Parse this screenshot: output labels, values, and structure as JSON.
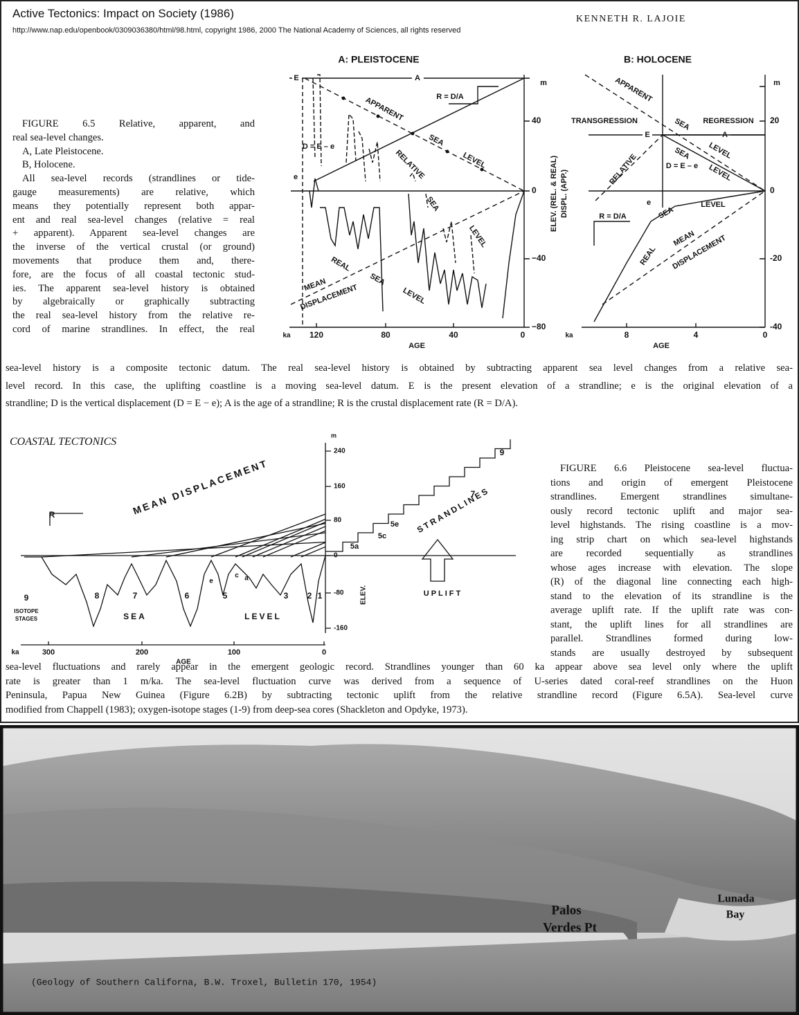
{
  "header": {
    "title": "Active Tectonics: Impact on Society (1986)",
    "url": "http://www.nap.edu/openbook/0309036380/html/98.html, copyright 1986, 2000 The National Academy of Sciences, all rights reserved",
    "author": "KENNETH R. LAJOIE"
  },
  "figure_6_5": {
    "panel_a": {
      "title": "A: PLEISTOCENE",
      "labels": [
        "E",
        "A",
        "R = D/A",
        "m",
        "APPARENT",
        "SEA",
        "LEVEL",
        "D = E – e",
        "e",
        "RELATIVE",
        "SEA",
        "LEVEL",
        "REAL",
        "SEA",
        "LEVEL",
        "MEAN",
        "DISPLACEMENT",
        "ELEV. (REL. & REAL)",
        "DISPL. (APP.)"
      ],
      "y_ticks": [
        "40",
        "0",
        "−40",
        "−80"
      ],
      "x_unit": "ka",
      "x_ticks": [
        "120",
        "80",
        "40",
        "0"
      ],
      "x_label": "AGE"
    },
    "panel_b": {
      "title": "B: HOLOCENE",
      "labels": [
        "APPARENT",
        "SEA",
        "LEVEL",
        "TRANSGRESSION",
        "REGRESSION",
        "E",
        "A",
        "RELATIVE",
        "SEA",
        "LEVEL",
        "D = E – e",
        "R = D/A",
        "e",
        "SEA",
        "LEVEL",
        "REAL",
        "MEAN",
        "DISPLACEMENT",
        "m"
      ],
      "y_ticks": [
        "20",
        "0",
        "-20",
        "-40"
      ],
      "x_unit": "ka",
      "x_ticks": [
        "8",
        "4",
        "0"
      ],
      "x_label": "AGE"
    },
    "caption_column": [
      "FIGURE 6.5  Relative, apparent, and",
      "real sea-level changes.",
      "A, Late Pleistocene.",
      "B, Holocene.",
      "All sea-level records (strandlines or tide-",
      "gauge measurements) are relative, which",
      "means they potentially represent both appar-",
      "ent and real sea-level changes (relative = real",
      "+ apparent). Apparent sea-level changes are",
      "the inverse of the vertical crustal (or ground)",
      "movements that produce them and, there-",
      "fore, are the focus of all coastal tectonic stud-",
      "ies. The apparent sea-level history is obtained",
      "by algebraically or graphically subtracting",
      "the real sea-level history from the relative re-",
      "cord of marine strandlines. In effect, the real"
    ],
    "caption_full": [
      "sea-level history is a composite tectonic datum. The real sea-level history is obtained by subtracting apparent sea level changes from a relative sea-",
      "level record. In this case, the uplifting coastline is a moving sea-level datum. E is the present elevation of a strandline; e is the original elevation of a",
      "strandline; D is the vertical displacement (D = E − e); A is the age of a strandline; R is the crustal displacement rate (R = D/A)."
    ]
  },
  "section_heading": "COASTAL TECTONICS",
  "figure_6_6": {
    "diagram": {
      "labels": [
        "MEAN DISPLACEMENT",
        "R",
        "9",
        "ISOTOPE",
        "STAGES",
        "8",
        "7",
        "6",
        "5",
        "3",
        "2",
        "1",
        "e",
        "c",
        "a",
        "SEA",
        "LEVEL",
        "ELEV.",
        "m",
        "9",
        "7",
        "5e",
        "5c",
        "5a",
        "STRANDLINES",
        "UPLIFT"
      ],
      "y_ticks": [
        "240",
        "160",
        "80",
        "0",
        "-80",
        "-160"
      ],
      "x_unit": "ka",
      "x_ticks": [
        "300",
        "200",
        "100",
        "0"
      ],
      "x_label": "AGE"
    },
    "caption_column": [
      "FIGURE 6.6  Pleistocene sea-level fluctua-",
      "tions and origin of emergent Pleistocene",
      "strandlines. Emergent strandlines simultane-",
      "ously record tectonic uplift and major sea-",
      "level highstands. The rising coastline is a mov-",
      "ing strip chart on which sea-level highstands",
      "are recorded sequentially as strandlines",
      "whose ages increase with elevation. The slope",
      "(R) of the diagonal line connecting each high-",
      "stand to the elevation of its strandline is the",
      "average uplift rate. If the uplift rate was con-",
      "stant, the uplift lines for all strandlines are",
      "parallel. Strandlines formed during low-",
      "stands are usually destroyed by subsequent"
    ],
    "caption_full": [
      "sea-level fluctuations and rarely appear in the emergent geologic record. Strandlines younger than 60 ka appear above sea level only where the uplift",
      "rate is greater than 1 m/ka. The sea-level fluctuation curve was derived from a sequence of U-series dated coral-reef strandlines on the Huon",
      "Peninsula, Papua New Guinea (Figure 6.2B) by subtracting tectonic uplift from the relative strandline record (Figure 6.5A). Sea-level curve",
      "modified from Chappell (1983); oxygen-isotope stages (1-9) from deep-sea cores (Shackleton and Opdyke, 1973)."
    ]
  },
  "photo": {
    "labels": [
      "Palos",
      "Verdes Pt",
      "Lunada",
      "Bay"
    ],
    "credit": "(Geology of Southern Californa, B.W. Troxel, Bulletin 170, 1954)"
  }
}
